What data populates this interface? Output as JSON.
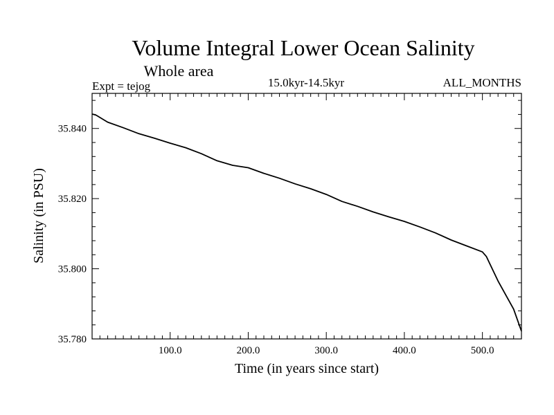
{
  "chart_data": {
    "type": "line",
    "title": "Volume Integral Lower Ocean Salinity",
    "subtitle": "Whole area",
    "left_label": "Expt = tejog",
    "center_label": "15.0kyr-14.5kyr",
    "right_label": "ALL_MONTHS",
    "xlabel": "Time (in years since start)",
    "ylabel": "Salinity (in PSU)",
    "xlim": [
      0,
      550
    ],
    "ylim": [
      35.78,
      35.85
    ],
    "xticks": [
      100,
      200,
      300,
      400,
      500
    ],
    "xtick_labels": [
      "100.0",
      "200.0",
      "300.0",
      "400.0",
      "500.0"
    ],
    "yticks": [
      35.78,
      35.8,
      35.82,
      35.84
    ],
    "ytick_labels": [
      "35.780",
      "35.800",
      "35.820",
      "35.840"
    ],
    "grid": false,
    "series": [
      {
        "name": "Salinity",
        "color": "#000000",
        "x": [
          0,
          5,
          20,
          40,
          60,
          80,
          100,
          120,
          140,
          160,
          180,
          200,
          220,
          240,
          260,
          280,
          300,
          320,
          340,
          360,
          380,
          400,
          420,
          440,
          460,
          480,
          500,
          505,
          520,
          540,
          550
        ],
        "y": [
          35.8441,
          35.8438,
          35.8418,
          35.8402,
          35.8385,
          35.8372,
          35.8358,
          35.8345,
          35.8328,
          35.8308,
          35.8295,
          35.8288,
          35.8272,
          35.8258,
          35.8242,
          35.8228,
          35.8212,
          35.8192,
          35.8178,
          35.8162,
          35.8148,
          35.8135,
          35.8119,
          35.8102,
          35.8082,
          35.8065,
          35.8048,
          35.8035,
          35.7965,
          35.7885,
          35.7822
        ]
      }
    ]
  }
}
